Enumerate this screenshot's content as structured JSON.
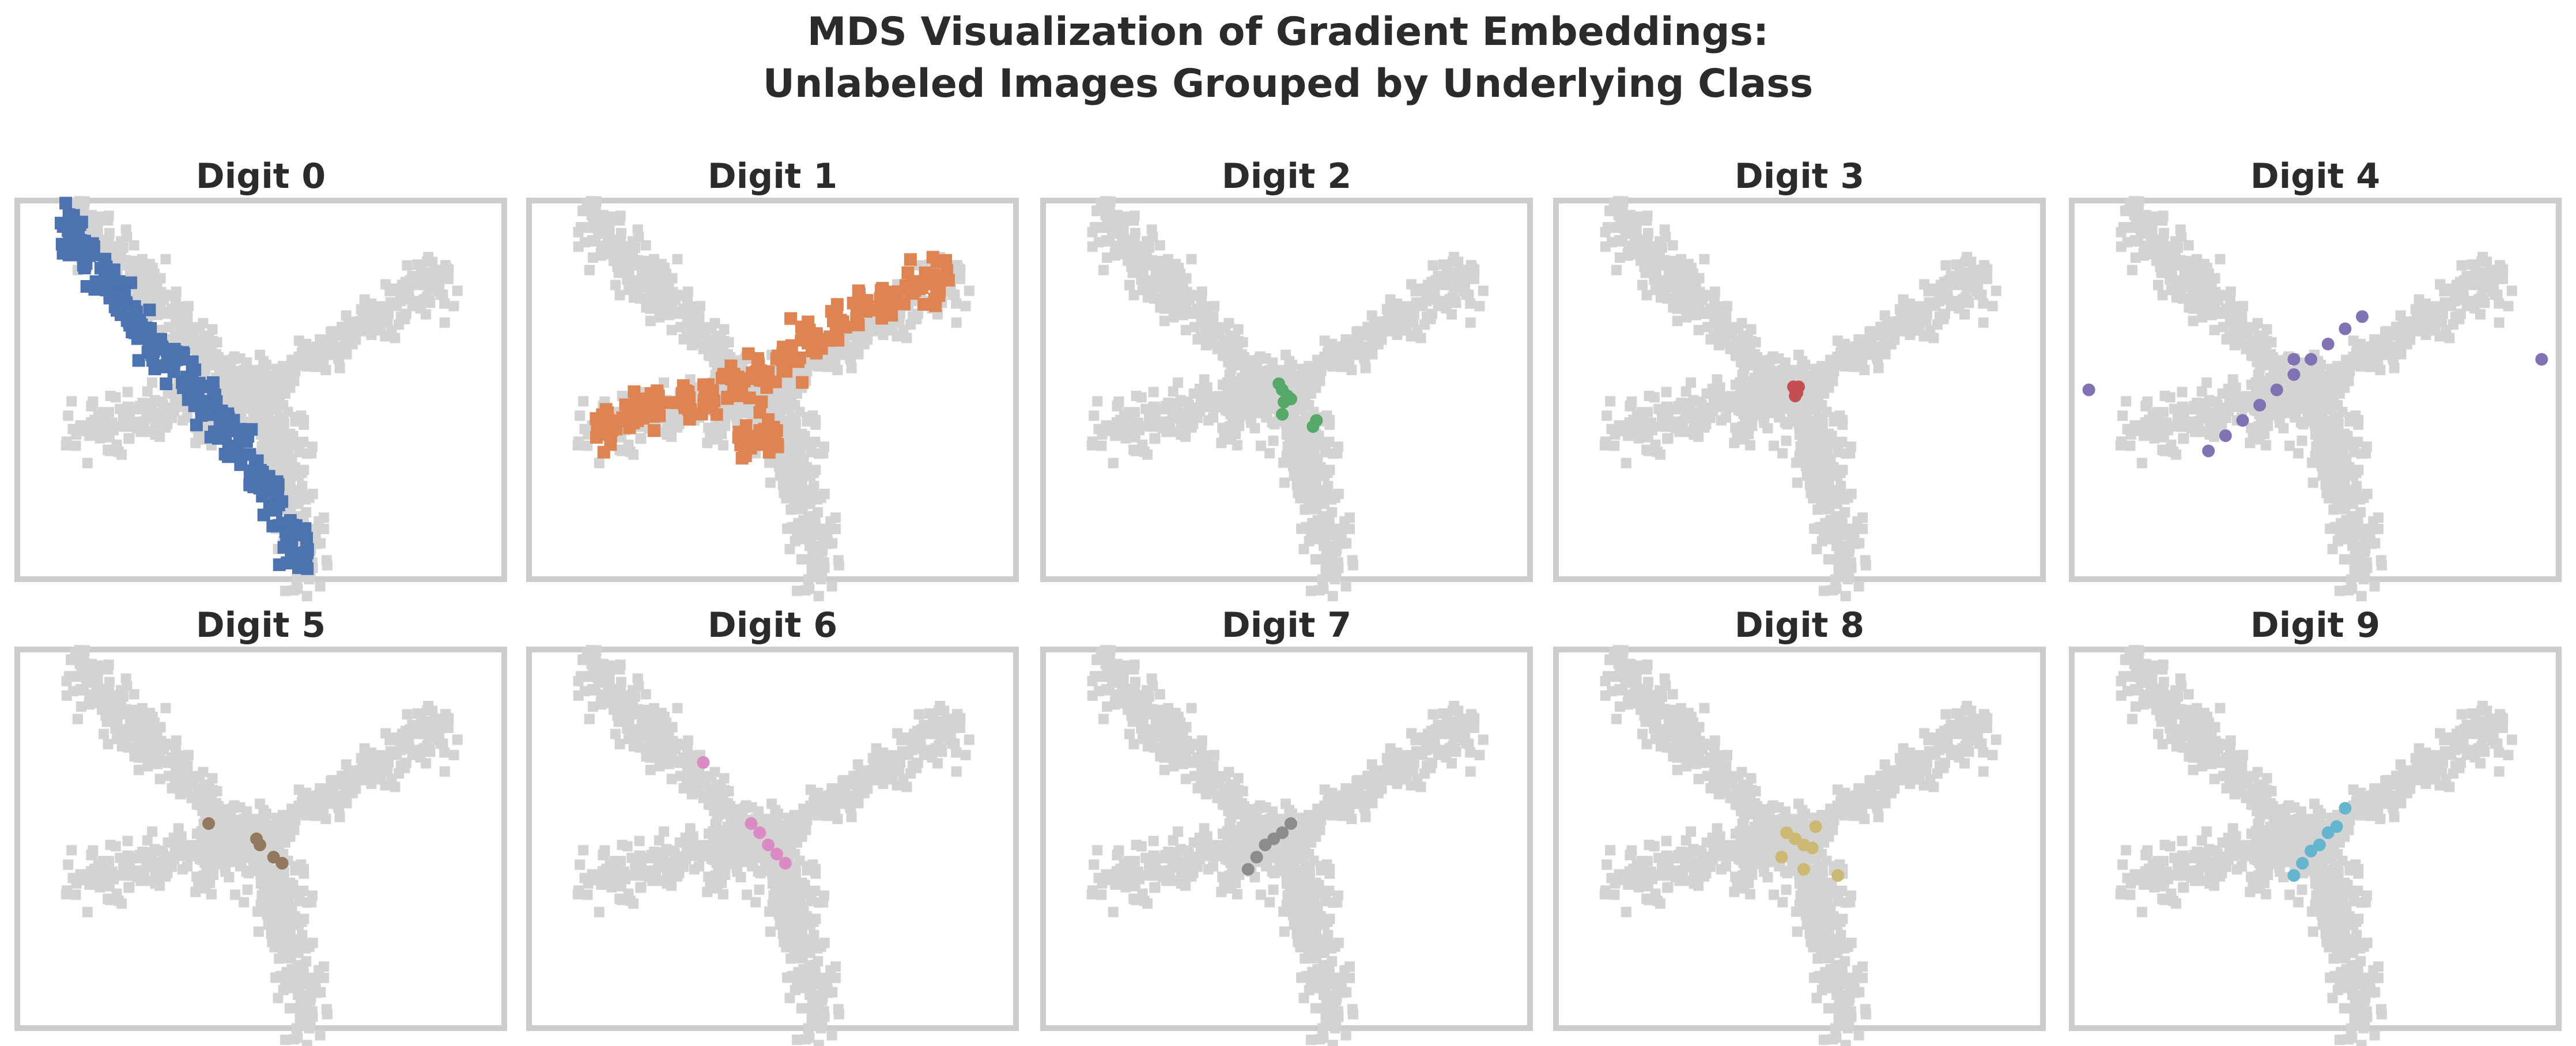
{
  "figure": {
    "title_line1": "MDS Visualization of Gradient Embeddings:",
    "title_line2": "Unlabeled Images Grouped by Underlying Class"
  },
  "colors": {
    "background_points": "#d3d3d3",
    "axes_border": "#cccccc",
    "text": "#2b2b2b"
  },
  "chart_data": [
    {
      "type": "scatter",
      "title": "Digit 0",
      "color": "#4c72b0",
      "description_of_points": "elongated diagonal cluster from upper-left arm down to lower arm",
      "highlight": [
        [
          -1.1,
          0.52
        ],
        [
          -1.0,
          0.45
        ],
        [
          -0.9,
          0.38
        ],
        [
          -0.8,
          0.3
        ],
        [
          -0.7,
          0.22
        ],
        [
          -0.6,
          0.15
        ],
        [
          -0.5,
          0.08
        ],
        [
          -0.4,
          0.02
        ],
        [
          -0.3,
          -0.05
        ],
        [
          -0.2,
          -0.12
        ],
        [
          -0.1,
          -0.2
        ],
        [
          0.0,
          -0.28
        ],
        [
          0.1,
          -0.36
        ],
        [
          0.18,
          -0.44
        ],
        [
          0.25,
          -0.52
        ]
      ]
    },
    {
      "type": "scatter",
      "title": "Digit 1",
      "color": "#dd8452",
      "description_of_points": "broad band along left and right horizontal arms",
      "highlight": [
        [
          -0.95,
          -0.12
        ],
        [
          -0.8,
          -0.08
        ],
        [
          -0.65,
          -0.05
        ],
        [
          -0.5,
          -0.03
        ],
        [
          -0.35,
          -0.02
        ],
        [
          -0.2,
          0.02
        ],
        [
          -0.05,
          0.05
        ],
        [
          0.1,
          0.1
        ],
        [
          0.25,
          0.16
        ],
        [
          0.4,
          0.22
        ],
        [
          0.55,
          0.27
        ],
        [
          0.7,
          0.31
        ],
        [
          0.85,
          0.34
        ],
        [
          1.0,
          0.37
        ],
        [
          0.0,
          -0.15
        ],
        [
          -0.15,
          -0.17
        ]
      ]
    },
    {
      "type": "scatter",
      "title": "Digit 2",
      "color": "#55a868",
      "description_of_points": "small cluster near center plus a few right of center",
      "highlight": [
        [
          -0.02,
          0.02
        ],
        [
          0.0,
          0.0
        ],
        [
          0.01,
          -0.04
        ],
        [
          0.03,
          -0.02
        ],
        [
          0.05,
          -0.03
        ],
        [
          0.0,
          -0.08
        ],
        [
          0.18,
          -0.12
        ],
        [
          0.2,
          -0.1
        ]
      ]
    },
    {
      "type": "scatter",
      "title": "Digit 3",
      "color": "#c44e52",
      "description_of_points": "tight cluster at center",
      "highlight": [
        [
          0.0,
          0.0
        ],
        [
          0.01,
          -0.01
        ],
        [
          -0.01,
          0.01
        ],
        [
          0.02,
          0.01
        ],
        [
          0.0,
          -0.02
        ]
      ]
    },
    {
      "type": "scatter",
      "title": "Digit 4",
      "color": "#8172b3",
      "description_of_points": "thin line along right arm plus outliers at far left and far right",
      "highlight": [
        [
          -0.6,
          -0.2
        ],
        [
          -0.5,
          -0.15
        ],
        [
          -0.4,
          -0.1
        ],
        [
          -0.3,
          -0.05
        ],
        [
          -0.2,
          0.0
        ],
        [
          -0.1,
          0.05
        ],
        [
          0.0,
          0.1
        ],
        [
          0.1,
          0.15
        ],
        [
          0.2,
          0.2
        ],
        [
          0.3,
          0.24
        ],
        [
          -1.3,
          0.0
        ],
        [
          1.35,
          0.1
        ],
        [
          -0.1,
          0.1
        ]
      ]
    },
    {
      "type": "scatter",
      "title": "Digit 5",
      "color": "#937860",
      "description_of_points": "few points near center",
      "highlight": [
        [
          -0.28,
          0.05
        ],
        [
          0.0,
          0.0
        ],
        [
          0.02,
          -0.02
        ],
        [
          0.1,
          -0.06
        ],
        [
          0.15,
          -0.08
        ]
      ]
    },
    {
      "type": "scatter",
      "title": "Digit 6",
      "color": "#da8bc3",
      "description_of_points": "short diagonal streak near center plus one outlier up-left",
      "highlight": [
        [
          -0.38,
          0.25
        ],
        [
          -0.1,
          0.05
        ],
        [
          -0.05,
          0.02
        ],
        [
          0.0,
          -0.02
        ],
        [
          0.05,
          -0.05
        ],
        [
          0.1,
          -0.08
        ]
      ]
    },
    {
      "type": "scatter",
      "title": "Digit 7",
      "color": "#8c8c8c",
      "description_of_points": "small diagonal cluster lower-left of center",
      "highlight": [
        [
          -0.2,
          -0.1
        ],
        [
          -0.15,
          -0.06
        ],
        [
          -0.1,
          -0.02
        ],
        [
          -0.05,
          0.0
        ],
        [
          0.0,
          0.02
        ],
        [
          0.05,
          0.05
        ]
      ]
    },
    {
      "type": "scatter",
      "title": "Digit 8",
      "color": "#ccb974",
      "description_of_points": "loose cluster near center plus one to the right",
      "highlight": [
        [
          -0.05,
          0.02
        ],
        [
          0.0,
          0.0
        ],
        [
          0.05,
          -0.02
        ],
        [
          0.1,
          -0.03
        ],
        [
          -0.08,
          -0.06
        ],
        [
          0.05,
          -0.1
        ],
        [
          0.12,
          0.04
        ],
        [
          0.25,
          -0.12
        ]
      ]
    },
    {
      "type": "scatter",
      "title": "Digit 9",
      "color": "#64b5cd",
      "description_of_points": "small diagonal streak just right of center",
      "highlight": [
        [
          -0.1,
          -0.12
        ],
        [
          -0.05,
          -0.08
        ],
        [
          0.0,
          -0.04
        ],
        [
          0.05,
          -0.02
        ],
        [
          0.1,
          0.02
        ],
        [
          0.15,
          0.04
        ],
        [
          0.2,
          0.1
        ]
      ]
    }
  ]
}
